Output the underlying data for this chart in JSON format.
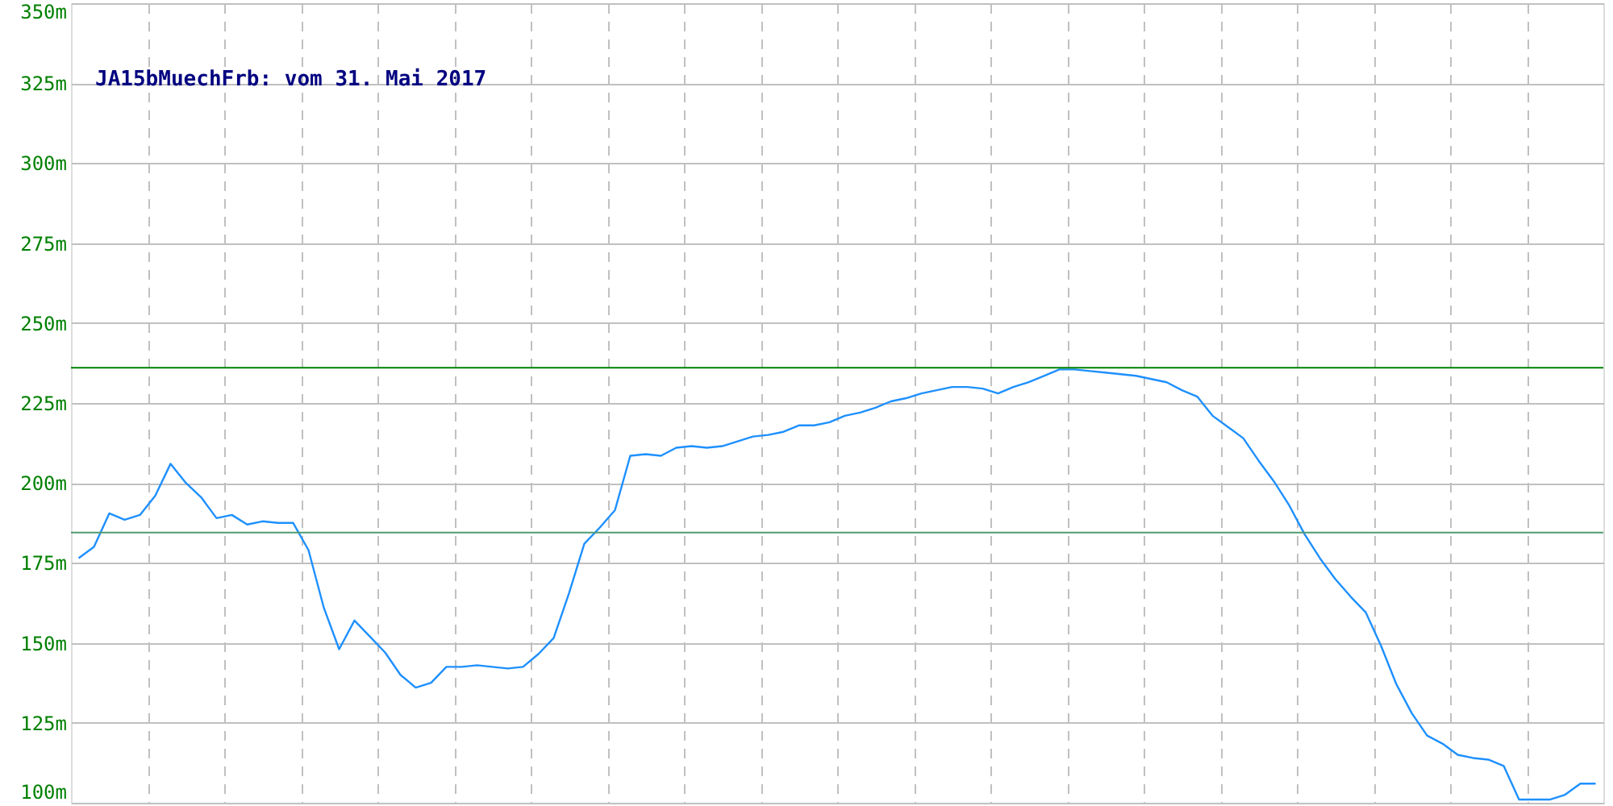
{
  "chart_data": {
    "type": "line",
    "title": "JA15bMuechFrb: vom 31. Mai 2017",
    "categories": [
      null,
      null,
      null,
      null,
      null,
      null,
      null,
      null,
      null,
      null,
      null,
      null,
      null,
      null,
      null,
      null,
      null,
      null,
      null,
      null,
      null,
      null,
      null,
      null,
      null,
      null,
      null,
      null,
      null,
      null,
      null,
      null,
      null,
      null,
      null,
      null,
      null,
      null,
      null,
      null,
      null,
      null,
      null,
      null,
      null,
      null,
      null,
      null,
      null,
      null,
      null,
      null,
      null,
      null,
      null,
      null,
      null,
      null,
      null,
      null,
      null,
      null,
      null,
      null,
      null,
      null,
      null,
      null,
      null,
      null,
      null,
      null,
      null,
      null,
      null,
      null,
      null,
      null,
      null,
      null,
      null,
      null,
      null,
      null,
      null,
      null,
      null,
      null,
      null,
      null,
      null,
      null,
      null,
      null,
      null,
      null,
      null,
      null,
      null,
      null
    ],
    "series": [
      {
        "color": "#1e90ff",
        "values": [
          176.5,
          180,
          190.5,
          188.5,
          190,
          196,
          206,
          200,
          195.5,
          189,
          190,
          187,
          188,
          187.5,
          187.5,
          179,
          161,
          148,
          157,
          152,
          147,
          140,
          136,
          137.5,
          142.5,
          142.5,
          143,
          142.5,
          142,
          142.5,
          146.5,
          151.5,
          165.5,
          181,
          186,
          191.5,
          208.5,
          209,
          208.5,
          211,
          211.5,
          211,
          211.5,
          213,
          214.5,
          215,
          216,
          218,
          218,
          219,
          221,
          222,
          223.5,
          225.5,
          226.5,
          228,
          229,
          230,
          230,
          229.5,
          228,
          230,
          231.5,
          233.5,
          235.5,
          235.5,
          235,
          234.5,
          234,
          233.5,
          232.5,
          231.5,
          229,
          227,
          221,
          217.5,
          214,
          207,
          200.5,
          193,
          184,
          176.5,
          170,
          164.5,
          159.5,
          149,
          137,
          128,
          121,
          118.5,
          115,
          114,
          113.5,
          111.5,
          101,
          101,
          101,
          102.5,
          106,
          106
        ]
      }
    ],
    "ylim": [
      100,
      350
    ],
    "yticks": [
      {
        "value": 100,
        "label": "100m"
      },
      {
        "value": 125,
        "label": "125m"
      },
      {
        "value": 150,
        "label": "150m"
      },
      {
        "value": 175,
        "label": "175m"
      },
      {
        "value": 200,
        "label": "200m"
      },
      {
        "value": 225,
        "label": "225m"
      },
      {
        "value": 250,
        "label": "250m"
      },
      {
        "value": 275,
        "label": "275m"
      },
      {
        "value": 300,
        "label": "300m"
      },
      {
        "value": 325,
        "label": "325m"
      },
      {
        "value": 350,
        "label": "350m"
      }
    ],
    "ref_lines": [
      {
        "axis": "y",
        "value": 236,
        "color": "#008000"
      },
      {
        "axis": "y",
        "value": 184.5,
        "color": "#4f9a72"
      }
    ],
    "grid": true,
    "marker": "none",
    "line_style": "solid"
  }
}
